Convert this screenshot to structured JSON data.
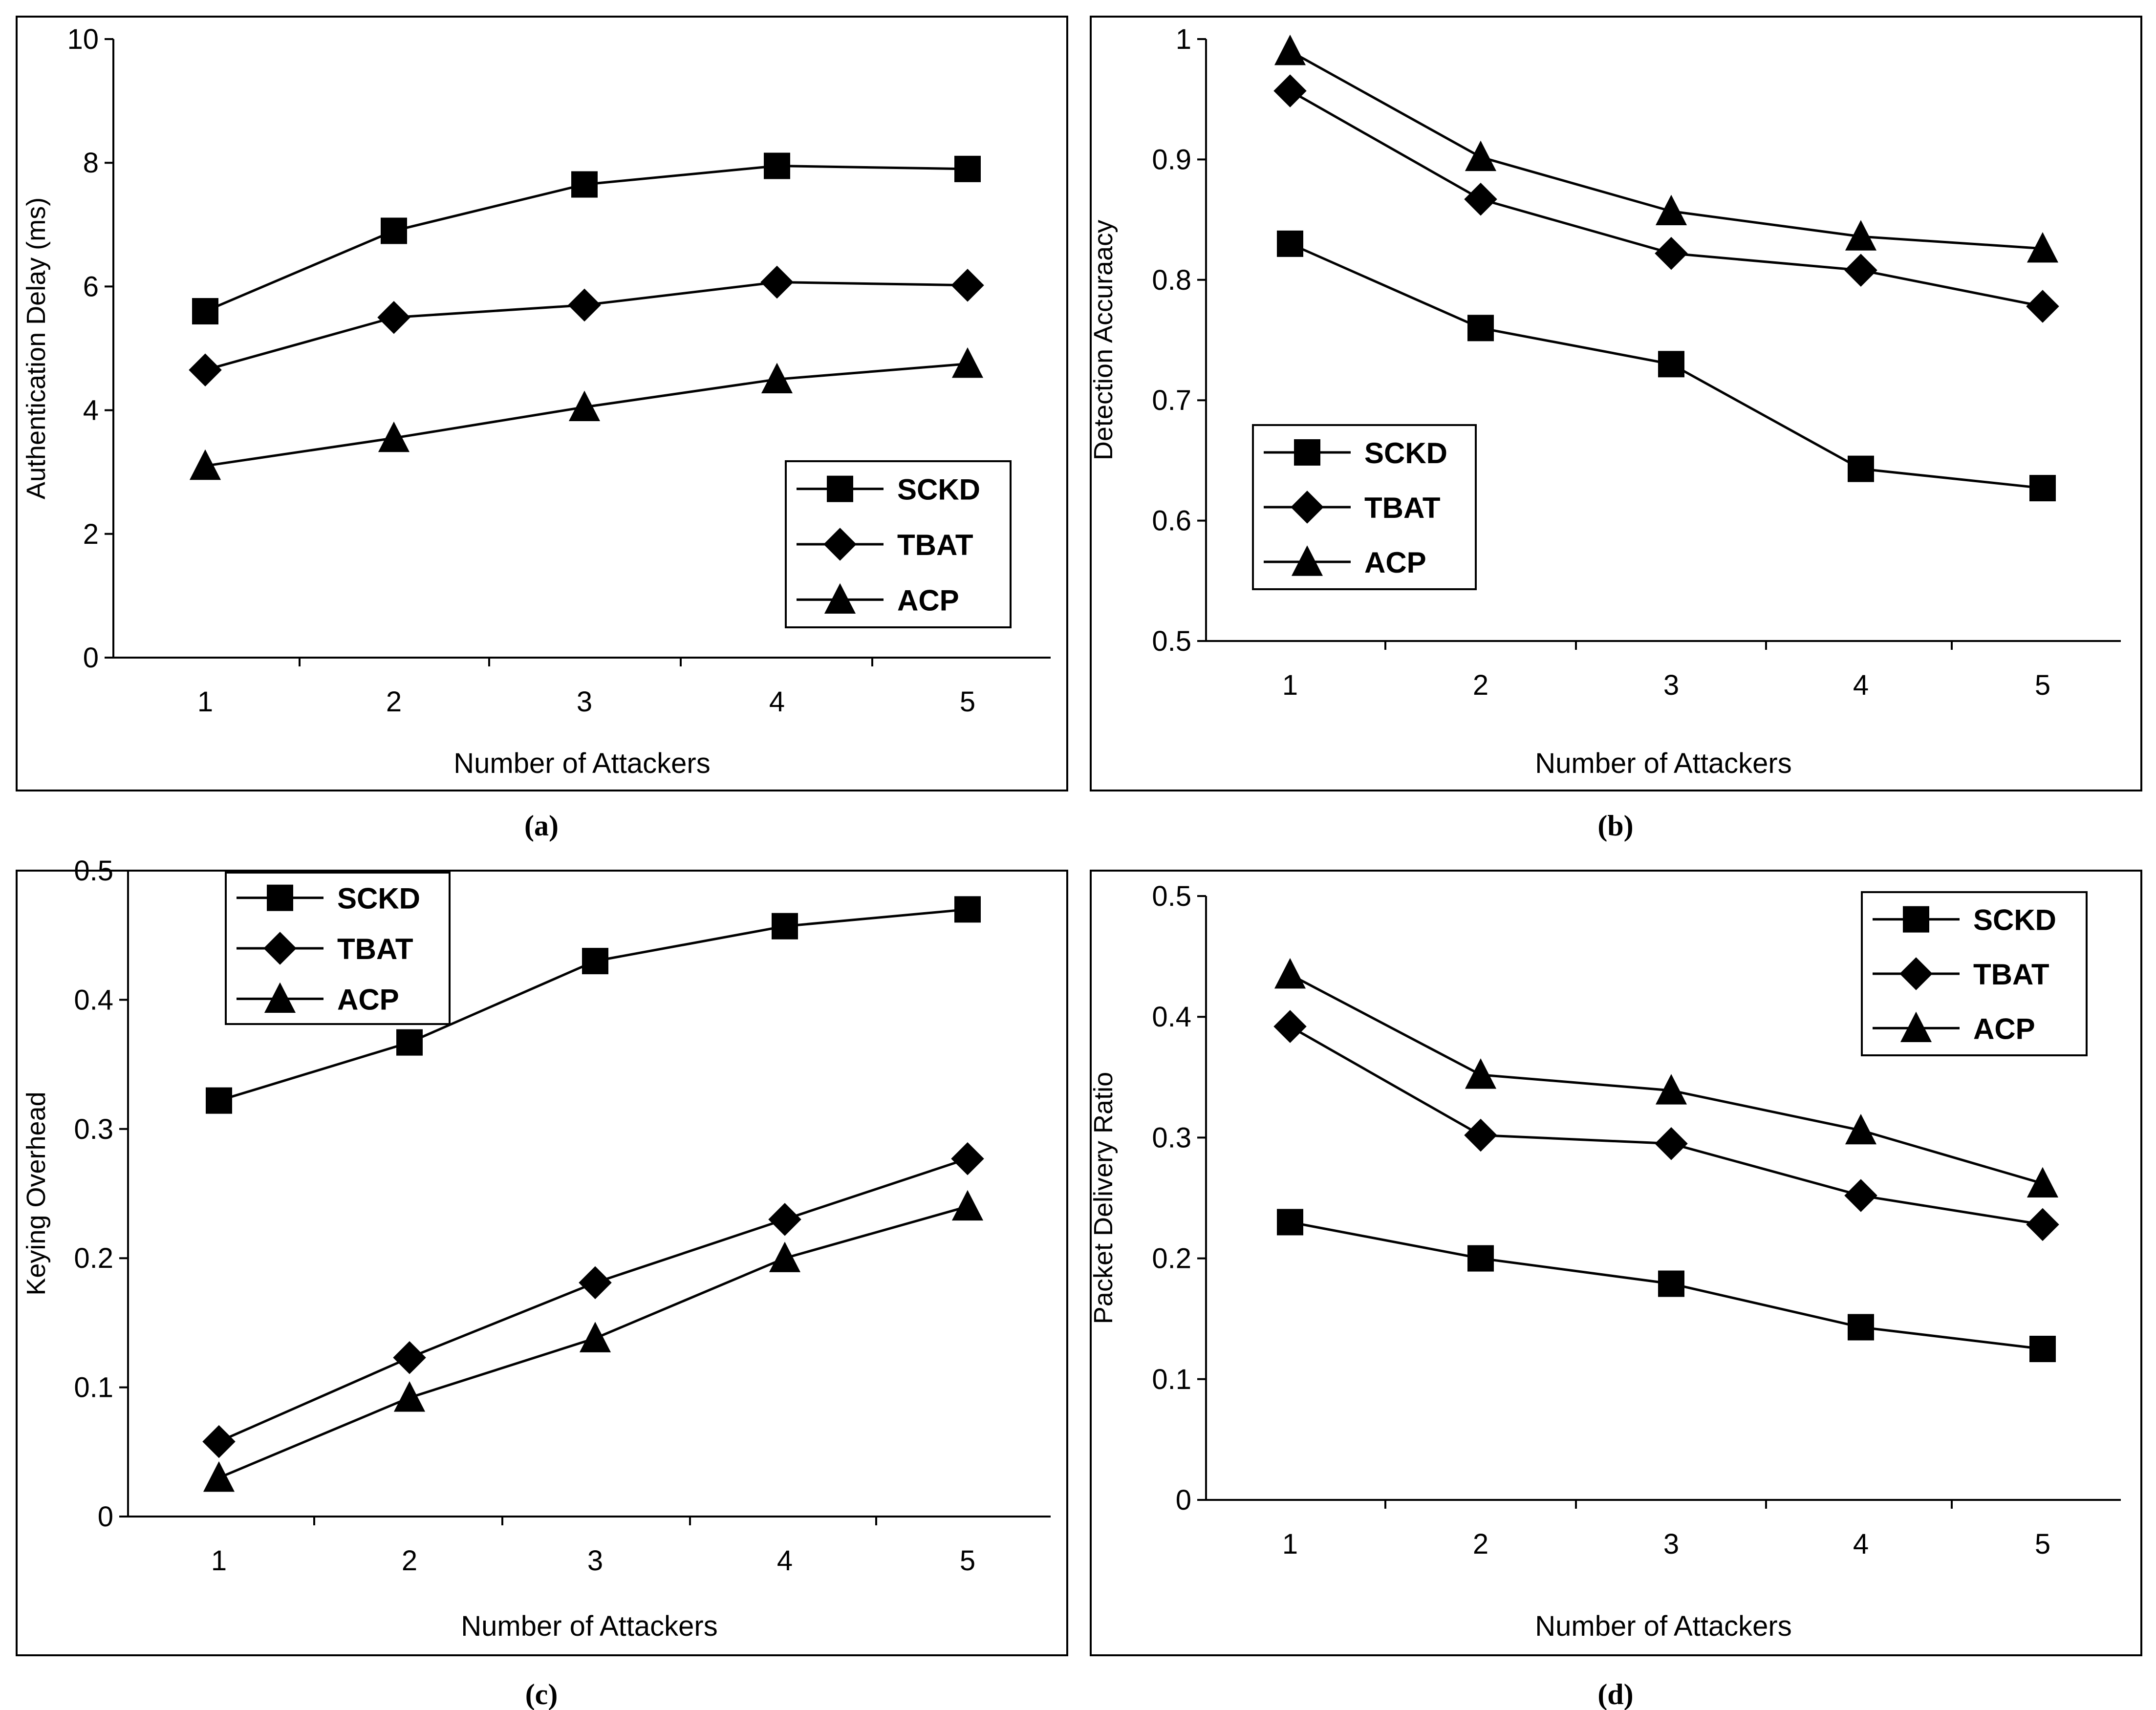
{
  "chart_data": [
    {
      "type": "line",
      "caption": "(a)",
      "title": "",
      "xlabel": "Number of Attackers",
      "ylabel": "Authentication Delay (ms)",
      "x": [
        1,
        2,
        3,
        4,
        5
      ],
      "xticks": [
        "1",
        "2",
        "3",
        "4",
        "5"
      ],
      "ylim": [
        0,
        10
      ],
      "yticks": [
        "0",
        "2",
        "4",
        "6",
        "8",
        "10"
      ],
      "legend_position": "bottom-right",
      "series": [
        {
          "name": "SCKD",
          "marker": "square",
          "values": [
            5.6,
            6.9,
            7.65,
            7.95,
            7.9
          ]
        },
        {
          "name": "TBAT",
          "marker": "diamond",
          "values": [
            4.65,
            5.5,
            5.7,
            6.07,
            6.02
          ]
        },
        {
          "name": "ACP",
          "marker": "triangle",
          "values": [
            3.1,
            3.55,
            4.05,
            4.5,
            4.75
          ]
        }
      ]
    },
    {
      "type": "line",
      "caption": "(b)",
      "title": "",
      "xlabel": "Number of Attackers",
      "ylabel": "Detection Accuraacy",
      "x": [
        1,
        2,
        3,
        4,
        5
      ],
      "xticks": [
        "1",
        "2",
        "3",
        "4",
        "5"
      ],
      "ylim": [
        0.5,
        1
      ],
      "yticks": [
        "0.5",
        "0.6",
        "0.7",
        "0.8",
        "0.9",
        "1"
      ],
      "legend_position": "bottom-left",
      "series": [
        {
          "name": "SCKD",
          "marker": "square",
          "values": [
            0.83,
            0.76,
            0.73,
            0.643,
            0.627
          ]
        },
        {
          "name": "TBAT",
          "marker": "diamond",
          "values": [
            0.957,
            0.867,
            0.822,
            0.808,
            0.778
          ]
        },
        {
          "name": "ACP",
          "marker": "triangle",
          "values": [
            0.99,
            0.902,
            0.857,
            0.836,
            0.826
          ]
        }
      ]
    },
    {
      "type": "line",
      "caption": "(c)",
      "title": "",
      "xlabel": "Number of Attackers",
      "ylabel": "Keying Overhead",
      "x": [
        1,
        2,
        3,
        4,
        5
      ],
      "xticks": [
        "1",
        "2",
        "3",
        "4",
        "5"
      ],
      "ylim": [
        0,
        0.5
      ],
      "yticks": [
        "0",
        "0.1",
        "0.2",
        "0.3",
        "0.4",
        "0.5"
      ],
      "legend_position": "top-left",
      "series": [
        {
          "name": "SCKD",
          "marker": "square",
          "values": [
            0.322,
            0.367,
            0.43,
            0.457,
            0.47
          ]
        },
        {
          "name": "TBAT",
          "marker": "diamond",
          "values": [
            0.058,
            0.123,
            0.181,
            0.23,
            0.277
          ]
        },
        {
          "name": "ACP",
          "marker": "triangle",
          "values": [
            0.03,
            0.092,
            0.138,
            0.2,
            0.24
          ]
        }
      ]
    },
    {
      "type": "line",
      "caption": "(d)",
      "title": "",
      "xlabel": "Number of Attackers",
      "ylabel": "Packet Delivery Ratio",
      "x": [
        1,
        2,
        3,
        4,
        5
      ],
      "xticks": [
        "1",
        "2",
        "3",
        "4",
        "5"
      ],
      "ylim": [
        0,
        0.5
      ],
      "yticks": [
        "0",
        "0.1",
        "0.2",
        "0.3",
        "0.4",
        "0.5"
      ],
      "legend_position": "top-right",
      "series": [
        {
          "name": "SCKD",
          "marker": "square",
          "values": [
            0.23,
            0.2,
            0.179,
            0.143,
            0.125
          ]
        },
        {
          "name": "TBAT",
          "marker": "diamond",
          "values": [
            0.392,
            0.302,
            0.295,
            0.252,
            0.228
          ]
        },
        {
          "name": "ACP",
          "marker": "triangle",
          "values": [
            0.435,
            0.352,
            0.339,
            0.306,
            0.262
          ]
        }
      ]
    }
  ]
}
